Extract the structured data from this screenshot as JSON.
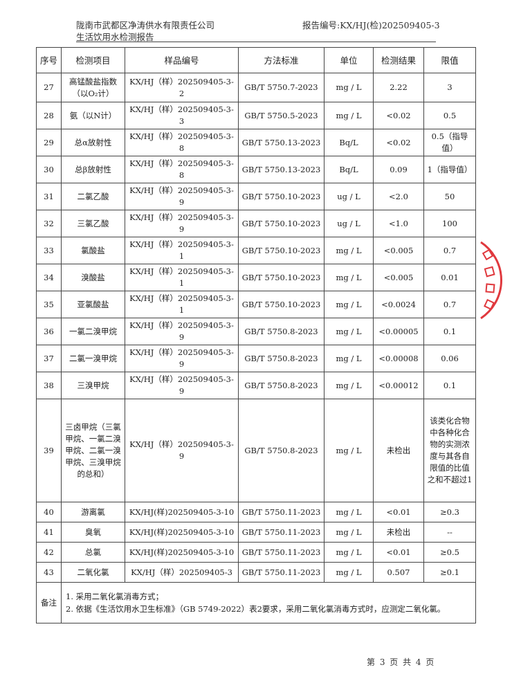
{
  "header": {
    "company": "陇南市武都区净涛供水有限责任公司",
    "report_title": "生活饮用水检测报告",
    "report_no": "报告编号:KX/HJ(检)202509405-3"
  },
  "table": {
    "columns": [
      "序号",
      "检测项目",
      "样品编号",
      "方法标准",
      "单位",
      "检测结果",
      "限值"
    ],
    "rows": [
      {
        "no": "27",
        "item": "高锰酸盐指数（以O₂计）",
        "sample": "KX/HJ（样）202509405-3-2",
        "method": "GB/T 5750.7-2023",
        "unit": "mg / L",
        "result": "2.22",
        "limit": "3"
      },
      {
        "no": "28",
        "item": "氨（以N计）",
        "sample": "KX/HJ（样）202509405-3-3",
        "method": "GB/T 5750.5-2023",
        "unit": "mg / L",
        "result": "<0.02",
        "limit": "0.5"
      },
      {
        "no": "29",
        "item": "总α放射性",
        "sample": "KX/HJ（样）202509405-3-8",
        "method": "GB/T 5750.13-2023",
        "unit": "Bq/L",
        "result": "<0.02",
        "limit": "0.5（指导值）"
      },
      {
        "no": "30",
        "item": "总β放射性",
        "sample": "KX/HJ（样）202509405-3-8",
        "method": "GB/T 5750.13-2023",
        "unit": "Bq/L",
        "result": "0.09",
        "limit": "1（指导值）"
      },
      {
        "no": "31",
        "item": "二氯乙酸",
        "sample": "KX/HJ（样）202509405-3-9",
        "method": "GB/T 5750.10-2023",
        "unit": "ug / L",
        "result": "<2.0",
        "limit": "50"
      },
      {
        "no": "32",
        "item": "三氯乙酸",
        "sample": "KX/HJ（样）202509405-3-9",
        "method": "GB/T 5750.10-2023",
        "unit": "ug / L",
        "result": "<1.0",
        "limit": "100"
      },
      {
        "no": "33",
        "item": "氯酸盐",
        "sample": "KX/HJ（样）202509405-3-1",
        "method": "GB/T 5750.10-2023",
        "unit": "mg / L",
        "result": "<0.005",
        "limit": "0.7"
      },
      {
        "no": "34",
        "item": "溴酸盐",
        "sample": "KX/HJ（样）202509405-3-1",
        "method": "GB/T 5750.10-2023",
        "unit": "mg / L",
        "result": "<0.005",
        "limit": "0.01"
      },
      {
        "no": "35",
        "item": "亚氯酸盐",
        "sample": "KX/HJ（样）202509405-3-1",
        "method": "GB/T 5750.10-2023",
        "unit": "mg / L",
        "result": "<0.0024",
        "limit": "0.7"
      },
      {
        "no": "36",
        "item": "一氯二溴甲烷",
        "sample": "KX/HJ（样）202509405-3-9",
        "method": "GB/T 5750.8-2023",
        "unit": "mg / L",
        "result": "<0.00005",
        "limit": "0.1"
      },
      {
        "no": "37",
        "item": "二氯一溴甲烷",
        "sample": "KX/HJ（样）202509405-3-9",
        "method": "GB/T 5750.8-2023",
        "unit": "mg / L",
        "result": "<0.00008",
        "limit": "0.06"
      },
      {
        "no": "38",
        "item": "三溴甲烷",
        "sample": "KX/HJ（样）202509405-3-9",
        "method": "GB/T 5750.8-2023",
        "unit": "mg / L",
        "result": "<0.00012",
        "limit": "0.1"
      },
      {
        "no": "39",
        "item": "三卤甲烷（三氯甲烷、一氯二溴甲烷、二氯一溴甲烷、三溴甲烷的总和）",
        "sample": "KX/HJ（样）202509405-3-9",
        "method": "GB/T 5750.8-2023",
        "unit": "mg / L",
        "result": "未检出",
        "limit": "该类化合物中各种化合物的实测浓度与其各自限值的比值之和不超过1"
      },
      {
        "no": "40",
        "item": "游离氯",
        "sample": "KX/HJ(样)202509405-3-10",
        "method": "GB/T 5750.11-2023",
        "unit": "mg / L",
        "result": "<0.01",
        "limit": "≥0.3"
      },
      {
        "no": "41",
        "item": "臭氧",
        "sample": "KX/HJ(样)202509405-3-10",
        "method": "GB/T 5750.11-2023",
        "unit": "mg / L",
        "result": "未检出",
        "limit": "--"
      },
      {
        "no": "42",
        "item": "总氯",
        "sample": "KX/HJ(样)202509405-3-10",
        "method": "GB/T 5750.11-2023",
        "unit": "mg / L",
        "result": "<0.01",
        "limit": "≥0.5"
      },
      {
        "no": "43",
        "item": "二氧化氯",
        "sample": "KX/HJ（样）202509405-3",
        "method": "GB/T 5750.11-2023",
        "unit": "mg / L",
        "result": "0.507",
        "limit": "≥0.1"
      }
    ],
    "notes_label": "备注",
    "notes": [
      "1. 采用二氧化氯消毒方式；",
      "2. 依据《生活饮用水卫生标准》（GB 5749-2022）表2要求，采用二氧化氯消毒方式时，应测定二氧化氯。"
    ]
  },
  "footer": {
    "page": "第 3 页 共 4 页"
  },
  "seal": {
    "color": "#e0393e",
    "text": "测有限公司"
  }
}
